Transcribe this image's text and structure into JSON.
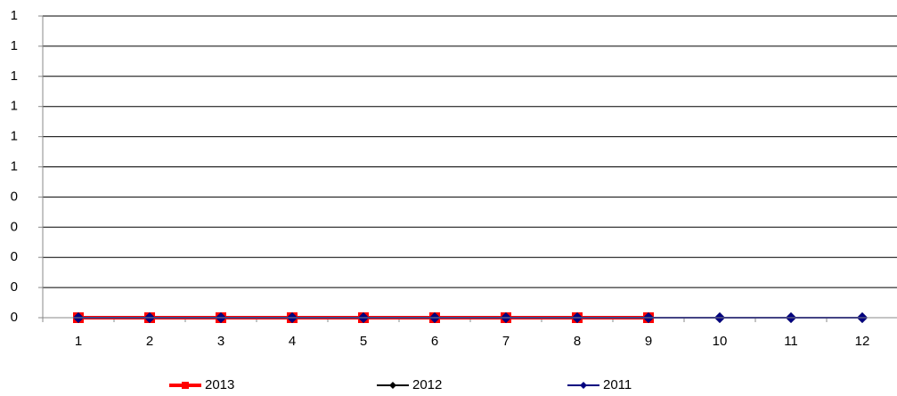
{
  "chart_data": {
    "type": "line",
    "categories": [
      "1",
      "2",
      "3",
      "4",
      "5",
      "6",
      "7",
      "8",
      "9",
      "10",
      "11",
      "12"
    ],
    "series": [
      {
        "name": "2013",
        "color": "#ff0000",
        "marker": "square",
        "values": [
          0,
          0,
          0,
          0,
          0,
          0,
          0,
          0,
          0,
          null,
          null,
          null
        ]
      },
      {
        "name": "2012",
        "color": "#000000",
        "marker": "diamond",
        "values": [
          0,
          0,
          0,
          0,
          0,
          0,
          0,
          0,
          0,
          0,
          0,
          0
        ]
      },
      {
        "name": "2011",
        "color": "#000080",
        "marker": "diamond",
        "values": [
          0,
          0,
          0,
          0,
          0,
          0,
          0,
          0,
          0,
          0,
          0,
          0
        ]
      }
    ],
    "ylim": [
      0,
      1.2
    ],
    "yticks": [
      {
        "value": 0,
        "label": "0"
      },
      {
        "value": 0.12,
        "label": "0"
      },
      {
        "value": 0.24,
        "label": "0"
      },
      {
        "value": 0.36,
        "label": "0"
      },
      {
        "value": 0.48,
        "label": "0"
      },
      {
        "value": 0.6,
        "label": "1"
      },
      {
        "value": 0.72,
        "label": "1"
      },
      {
        "value": 0.84,
        "label": "1"
      },
      {
        "value": 0.96,
        "label": "1"
      },
      {
        "value": 1.08,
        "label": "1"
      },
      {
        "value": 1.2,
        "label": "1"
      }
    ],
    "grid": true,
    "legend": "bottom"
  }
}
